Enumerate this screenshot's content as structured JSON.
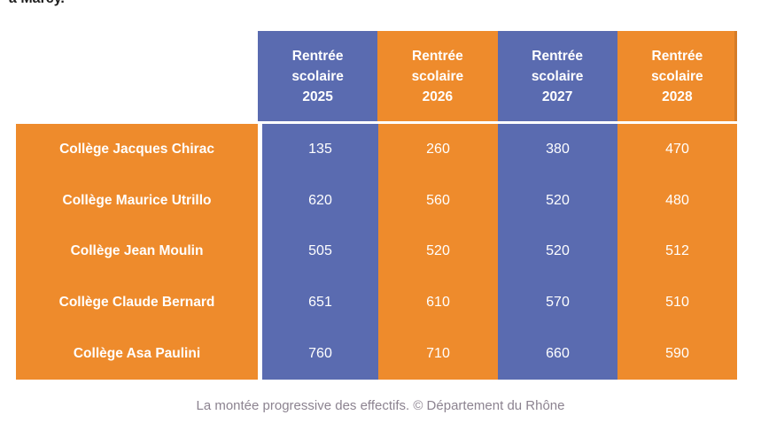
{
  "page": {
    "top_text_fragment": "à Marcy.",
    "caption": "La montée progressive des effectifs. © Département du Rhône"
  },
  "colors": {
    "header_blue": "#5a6bb0",
    "header_orange": "#ee8b2c",
    "cell_text": "#ffffff",
    "caption_gray": "#8c8390"
  },
  "table": {
    "headers": [
      "Rentrée scolaire 2025",
      "Rentrée scolaire 2026",
      "Rentrée scolaire 2027",
      "Rentrée scolaire 2028"
    ]
  },
  "chart_data": {
    "type": "table",
    "title": "La montée progressive des effectifs",
    "columns": [
      "Rentrée scolaire 2025",
      "Rentrée scolaire 2026",
      "Rentrée scolaire 2027",
      "Rentrée scolaire 2028"
    ],
    "rows": [
      {
        "name": "Collège Jacques Chirac",
        "values": [
          135,
          260,
          380,
          470
        ]
      },
      {
        "name": "Collège Maurice Utrillo",
        "values": [
          620,
          560,
          520,
          480
        ]
      },
      {
        "name": "Collège Jean Moulin",
        "values": [
          505,
          520,
          520,
          512
        ]
      },
      {
        "name": "Collège Claude Bernard",
        "values": [
          651,
          610,
          570,
          510
        ]
      },
      {
        "name": "Collège Asa Paulini",
        "values": [
          760,
          710,
          660,
          590
        ]
      }
    ],
    "source": "© Département du Rhône",
    "layout": {
      "legend": "none",
      "grid": "off"
    }
  }
}
